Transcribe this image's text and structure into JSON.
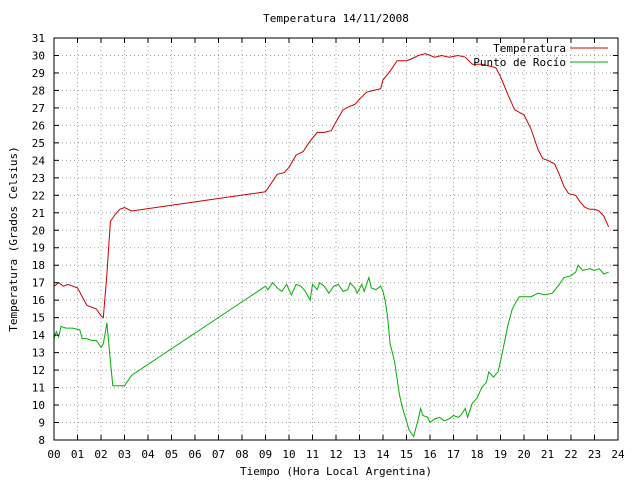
{
  "chart_data": {
    "type": "line",
    "title": "Temperatura 14/11/2008",
    "xlabel": "Tiempo (Hora Local Argentina)",
    "ylabel": "Temperatura (Grados Celsius)",
    "xlim": [
      0,
      24
    ],
    "ylim": [
      8,
      31
    ],
    "x_ticks": [
      "00",
      "01",
      "02",
      "03",
      "04",
      "05",
      "06",
      "07",
      "08",
      "09",
      "10",
      "11",
      "12",
      "13",
      "14",
      "15",
      "16",
      "17",
      "18",
      "19",
      "20",
      "21",
      "22",
      "23",
      "24"
    ],
    "y_ticks": [
      "8",
      "9",
      "10",
      "11",
      "12",
      "13",
      "14",
      "15",
      "16",
      "17",
      "18",
      "19",
      "20",
      "21",
      "22",
      "23",
      "24",
      "25",
      "26",
      "27",
      "28",
      "29",
      "30",
      "31"
    ],
    "grid": true,
    "legend_position": "top-right",
    "series": [
      {
        "name": "Temperatura",
        "color": "#cc0000",
        "points": [
          [
            0.0,
            16.8
          ],
          [
            0.2,
            17.0
          ],
          [
            0.4,
            16.8
          ],
          [
            0.6,
            16.9
          ],
          [
            0.8,
            16.8
          ],
          [
            1.0,
            16.7
          ],
          [
            1.2,
            16.2
          ],
          [
            1.4,
            15.7
          ],
          [
            1.6,
            15.6
          ],
          [
            1.8,
            15.5
          ],
          [
            2.0,
            15.1
          ],
          [
            2.1,
            15.0
          ],
          [
            2.25,
            17.5
          ],
          [
            2.4,
            20.5
          ],
          [
            2.6,
            20.9
          ],
          [
            2.8,
            21.2
          ],
          [
            3.0,
            21.3
          ],
          [
            3.3,
            21.1
          ],
          [
            9.0,
            22.2
          ],
          [
            9.2,
            22.6
          ],
          [
            9.5,
            23.2
          ],
          [
            9.8,
            23.3
          ],
          [
            10.0,
            23.6
          ],
          [
            10.3,
            24.3
          ],
          [
            10.6,
            24.5
          ],
          [
            10.9,
            25.1
          ],
          [
            11.2,
            25.6
          ],
          [
            11.5,
            25.6
          ],
          [
            11.8,
            25.7
          ],
          [
            12.0,
            26.2
          ],
          [
            12.3,
            26.9
          ],
          [
            12.6,
            27.1
          ],
          [
            12.8,
            27.2
          ],
          [
            13.0,
            27.5
          ],
          [
            13.3,
            27.9
          ],
          [
            13.6,
            28.0
          ],
          [
            13.9,
            28.1
          ],
          [
            14.0,
            28.6
          ],
          [
            14.3,
            29.1
          ],
          [
            14.6,
            29.7
          ],
          [
            15.0,
            29.7
          ],
          [
            15.2,
            29.8
          ],
          [
            15.5,
            30.0
          ],
          [
            15.8,
            30.1
          ],
          [
            16.2,
            29.9
          ],
          [
            16.5,
            30.0
          ],
          [
            16.8,
            29.9
          ],
          [
            17.2,
            30.0
          ],
          [
            17.5,
            29.9
          ],
          [
            17.8,
            29.5
          ],
          [
            18.2,
            29.5
          ],
          [
            18.5,
            29.4
          ],
          [
            18.8,
            29.3
          ],
          [
            19.0,
            28.8
          ],
          [
            19.3,
            27.8
          ],
          [
            19.6,
            26.9
          ],
          [
            20.0,
            26.6
          ],
          [
            20.3,
            25.8
          ],
          [
            20.6,
            24.6
          ],
          [
            20.8,
            24.1
          ],
          [
            21.0,
            24.0
          ],
          [
            21.3,
            23.8
          ],
          [
            21.5,
            23.2
          ],
          [
            21.7,
            22.5
          ],
          [
            21.9,
            22.1
          ],
          [
            22.2,
            22.0
          ],
          [
            22.4,
            21.6
          ],
          [
            22.6,
            21.3
          ],
          [
            22.8,
            21.2
          ],
          [
            23.0,
            21.2
          ],
          [
            23.2,
            21.1
          ],
          [
            23.4,
            20.8
          ],
          [
            23.6,
            20.2
          ]
        ]
      },
      {
        "name": "Punto de Rocío",
        "color": "#00b000",
        "points": [
          [
            0.0,
            13.8
          ],
          [
            0.1,
            14.2
          ],
          [
            0.2,
            13.9
          ],
          [
            0.3,
            14.5
          ],
          [
            0.5,
            14.4
          ],
          [
            0.8,
            14.4
          ],
          [
            1.1,
            14.3
          ],
          [
            1.2,
            13.8
          ],
          [
            1.4,
            13.8
          ],
          [
            1.6,
            13.7
          ],
          [
            1.8,
            13.7
          ],
          [
            2.0,
            13.3
          ],
          [
            2.1,
            13.5
          ],
          [
            2.25,
            14.7
          ],
          [
            2.4,
            12.5
          ],
          [
            2.5,
            11.1
          ],
          [
            3.0,
            11.1
          ],
          [
            3.3,
            11.7
          ],
          [
            9.0,
            16.8
          ],
          [
            9.1,
            16.6
          ],
          [
            9.3,
            17.0
          ],
          [
            9.5,
            16.7
          ],
          [
            9.7,
            16.5
          ],
          [
            9.9,
            16.9
          ],
          [
            10.1,
            16.3
          ],
          [
            10.3,
            16.9
          ],
          [
            10.5,
            16.8
          ],
          [
            10.7,
            16.5
          ],
          [
            10.9,
            16.0
          ],
          [
            11.0,
            16.9
          ],
          [
            11.2,
            16.6
          ],
          [
            11.3,
            17.0
          ],
          [
            11.5,
            16.8
          ],
          [
            11.7,
            16.4
          ],
          [
            11.9,
            16.8
          ],
          [
            12.1,
            16.9
          ],
          [
            12.3,
            16.5
          ],
          [
            12.5,
            16.6
          ],
          [
            12.6,
            17.0
          ],
          [
            12.8,
            16.7
          ],
          [
            12.9,
            16.4
          ],
          [
            13.1,
            16.9
          ],
          [
            13.2,
            16.5
          ],
          [
            13.4,
            17.3
          ],
          [
            13.5,
            16.7
          ],
          [
            13.7,
            16.6
          ],
          [
            13.9,
            16.8
          ],
          [
            14.0,
            16.5
          ],
          [
            14.1,
            15.9
          ],
          [
            14.2,
            15.0
          ],
          [
            14.3,
            13.5
          ],
          [
            14.4,
            13.0
          ],
          [
            14.5,
            12.4
          ],
          [
            14.6,
            11.5
          ],
          [
            14.7,
            10.6
          ],
          [
            14.8,
            10.0
          ],
          [
            14.9,
            9.5
          ],
          [
            15.0,
            9.1
          ],
          [
            15.1,
            8.6
          ],
          [
            15.2,
            8.4
          ],
          [
            15.3,
            8.2
          ],
          [
            15.5,
            9.2
          ],
          [
            15.6,
            9.8
          ],
          [
            15.7,
            9.4
          ],
          [
            15.9,
            9.3
          ],
          [
            16.0,
            9.0
          ],
          [
            16.2,
            9.2
          ],
          [
            16.4,
            9.3
          ],
          [
            16.6,
            9.1
          ],
          [
            16.8,
            9.2
          ],
          [
            17.0,
            9.4
          ],
          [
            17.2,
            9.3
          ],
          [
            17.3,
            9.4
          ],
          [
            17.5,
            9.8
          ],
          [
            17.6,
            9.3
          ],
          [
            17.8,
            10.1
          ],
          [
            18.0,
            10.4
          ],
          [
            18.2,
            11.0
          ],
          [
            18.4,
            11.3
          ],
          [
            18.5,
            11.9
          ],
          [
            18.7,
            11.6
          ],
          [
            18.9,
            11.9
          ],
          [
            19.0,
            12.5
          ],
          [
            19.2,
            13.8
          ],
          [
            19.3,
            14.5
          ],
          [
            19.5,
            15.5
          ],
          [
            19.7,
            16.0
          ],
          [
            19.8,
            16.2
          ],
          [
            20.0,
            16.2
          ],
          [
            20.3,
            16.2
          ],
          [
            20.6,
            16.4
          ],
          [
            20.9,
            16.3
          ],
          [
            21.2,
            16.4
          ],
          [
            21.5,
            16.9
          ],
          [
            21.7,
            17.3
          ],
          [
            22.0,
            17.4
          ],
          [
            22.2,
            17.6
          ],
          [
            22.3,
            18.0
          ],
          [
            22.5,
            17.7
          ],
          [
            22.8,
            17.8
          ],
          [
            23.0,
            17.7
          ],
          [
            23.2,
            17.8
          ],
          [
            23.4,
            17.5
          ],
          [
            23.6,
            17.6
          ]
        ]
      }
    ]
  }
}
